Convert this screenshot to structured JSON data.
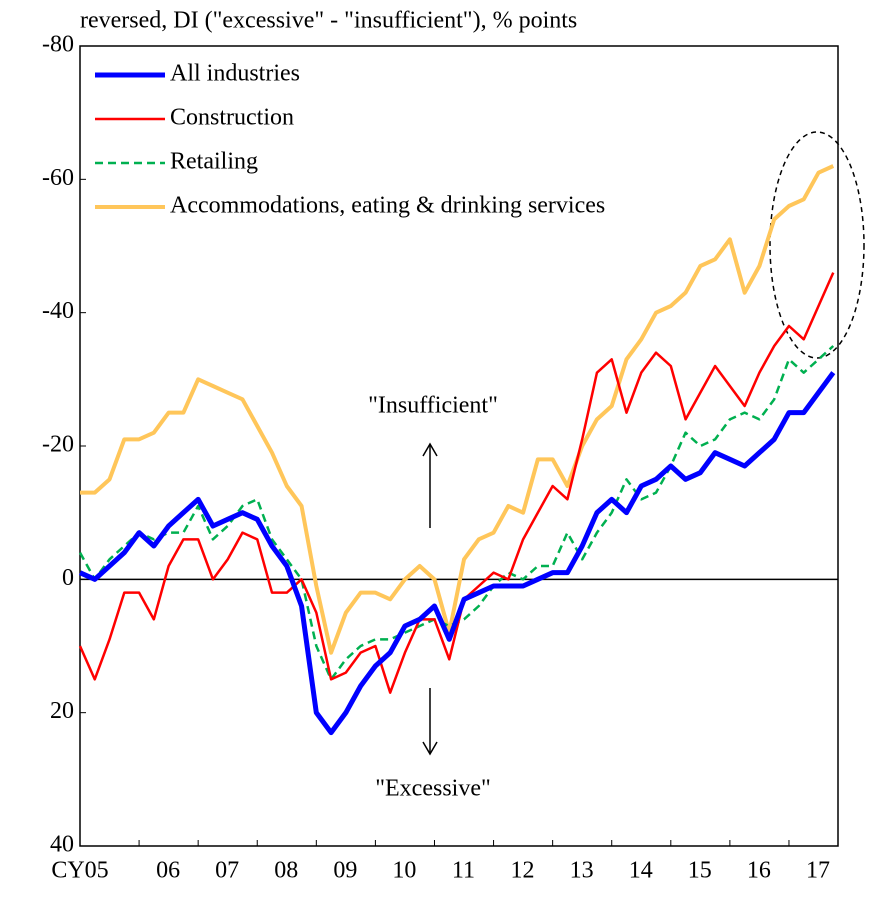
{
  "chart_data": {
    "type": "line",
    "title": "reversed, DI (\"excessive\" - \"insufficient\"), % points",
    "x": [
      2005,
      2005.25,
      2005.5,
      2005.75,
      2006,
      2006.25,
      2006.5,
      2006.75,
      2007,
      2007.25,
      2007.5,
      2007.75,
      2008,
      2008.25,
      2008.5,
      2008.75,
      2009,
      2009.25,
      2009.5,
      2009.75,
      2010,
      2010.25,
      2010.5,
      2010.75,
      2011,
      2011.25,
      2011.5,
      2011.75,
      2012,
      2012.25,
      2012.5,
      2012.75,
      2013,
      2013.25,
      2013.5,
      2013.75,
      2014,
      2014.25,
      2014.5,
      2014.75,
      2015,
      2015.25,
      2015.5,
      2015.75,
      2016,
      2016.25,
      2016.5,
      2016.75,
      2017,
      2017.25,
      2017.5,
      2017.75
    ],
    "series": [
      {
        "name": "All industries",
        "color": "#0000ff",
        "values": [
          -1,
          0,
          -2,
          -4,
          -7,
          -5,
          -8,
          -10,
          -12,
          -8,
          -9,
          -10,
          -9,
          -5,
          -2,
          4,
          20,
          23,
          20,
          16,
          13,
          11,
          7,
          6,
          4,
          9,
          3,
          2,
          1,
          1,
          1,
          0,
          -1,
          -1,
          -5,
          -10,
          -12,
          -10,
          -14,
          -15,
          -17,
          -15,
          -16,
          -19,
          -18,
          -17,
          -19,
          -21,
          -25,
          -25,
          -28,
          -31
        ]
      },
      {
        "name": "Construction",
        "color": "#ff0000",
        "values": [
          10,
          15,
          9,
          2,
          2,
          6,
          -2,
          -6,
          -6,
          0,
          -3,
          -7,
          -6,
          2,
          2,
          0,
          5,
          15,
          14,
          11,
          10,
          17,
          11,
          6,
          6,
          12,
          3,
          1,
          -1,
          0,
          -6,
          -10,
          -14,
          -12,
          -21,
          -31,
          -33,
          -25,
          -31,
          -34,
          -32,
          -24,
          -28,
          -32,
          -29,
          -26,
          -31,
          -35,
          -38,
          -36,
          -41,
          -46
        ]
      },
      {
        "name": "Retailing",
        "color": "#00b050",
        "dashed": true,
        "values": [
          -4,
          0,
          -3,
          -5,
          -7,
          -6,
          -7,
          -7,
          -11,
          -6,
          -8,
          -11,
          -12,
          -6,
          -3,
          0,
          10,
          15,
          12,
          10,
          9,
          9,
          8,
          7,
          6,
          7,
          6,
          4,
          1,
          -1,
          0,
          -2,
          -2,
          -7,
          -3,
          -7,
          -10,
          -15,
          -12,
          -13,
          -17,
          -22,
          -20,
          -21,
          -24,
          -25,
          -24,
          -27,
          -33,
          -31,
          -33,
          -35
        ]
      },
      {
        "name": "Accommodations, eating & drinking services",
        "color": "#ffc65a",
        "values": [
          -13,
          -13,
          -15,
          -21,
          -21,
          -22,
          -25,
          -25,
          -30,
          -29,
          -28,
          -27,
          -23,
          -19,
          -14,
          -11,
          1,
          11,
          5,
          2,
          2,
          3,
          0,
          -2,
          0,
          8,
          -3,
          -6,
          -7,
          -11,
          -10,
          -18,
          -18,
          -14,
          -20,
          -24,
          -26,
          -33,
          -36,
          -40,
          -41,
          -43,
          -47,
          -48,
          -51,
          -43,
          -47,
          -54,
          -56,
          -57,
          -61,
          -62
        ]
      }
    ],
    "xlim": [
      2005,
      2017.83
    ],
    "xticks": [
      {
        "value": 2005,
        "label": "CY05"
      },
      {
        "value": 2006,
        "label": "06"
      },
      {
        "value": 2007,
        "label": "07"
      },
      {
        "value": 2008,
        "label": "08"
      },
      {
        "value": 2009,
        "label": "09"
      },
      {
        "value": 2010,
        "label": "10"
      },
      {
        "value": 2011,
        "label": "11"
      },
      {
        "value": 2012,
        "label": "12"
      },
      {
        "value": 2013,
        "label": "13"
      },
      {
        "value": 2014,
        "label": "14"
      },
      {
        "value": 2015,
        "label": "15"
      },
      {
        "value": 2016,
        "label": "16"
      },
      {
        "value": 2017,
        "label": "17"
      }
    ],
    "ylim": [
      -80,
      40
    ],
    "yticks": [
      -80,
      -60,
      -40,
      -20,
      0,
      20,
      40
    ],
    "annotations": [
      "\"Insufficient\"",
      "\"Excessive\""
    ],
    "legend": "upper left"
  }
}
